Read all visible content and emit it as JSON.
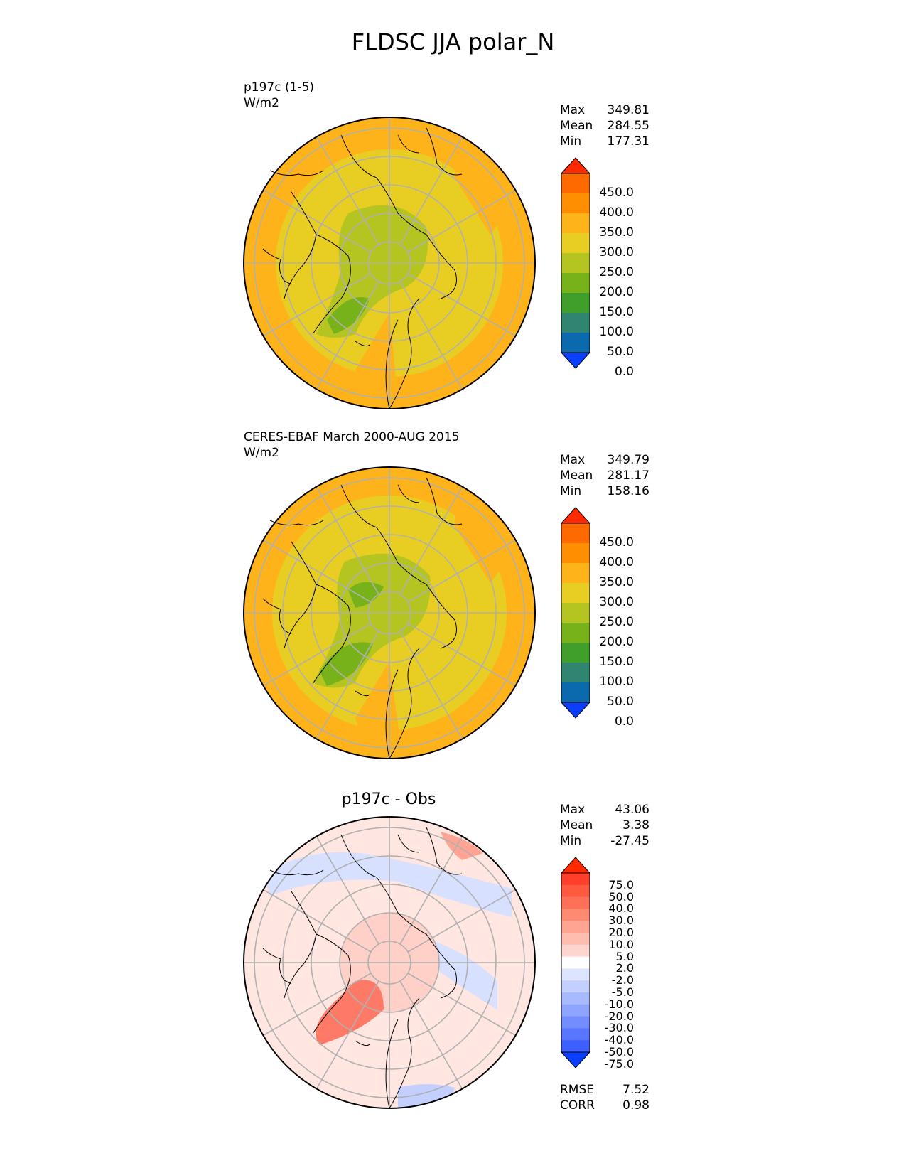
{
  "title": "FLDSC JJA polar_N",
  "panels": [
    {
      "label_line1": "p197c (1-5)",
      "label_line2": "W/m2",
      "stats": {
        "max_label": "Max",
        "max": "349.81",
        "mean_label": "Mean",
        "mean": "284.55",
        "min_label": "Min",
        "min": "177.31"
      }
    },
    {
      "label_line1": "CERES-EBAF March 2000-AUG 2015",
      "label_line2": "W/m2",
      "stats": {
        "max_label": "Max",
        "max": "349.79",
        "mean_label": "Mean",
        "mean": "281.17",
        "min_label": "Min",
        "min": "158.16"
      }
    },
    {
      "title": "p197c - Obs",
      "stats": {
        "max_label": "Max",
        "max": "43.06",
        "mean_label": "Mean",
        "mean": "3.38",
        "min_label": "Min",
        "min": "-27.45"
      },
      "metrics": {
        "rmse_label": "RMSE",
        "rmse": "7.52",
        "corr_label": "CORR",
        "corr": "0.98"
      }
    }
  ],
  "colorbar_main": {
    "labels": [
      "450.0",
      "400.0",
      "350.0",
      "300.0",
      "250.0",
      "200.0",
      "150.0",
      "100.0",
      "50.0",
      "0.0"
    ],
    "colors": [
      "#ff2a00",
      "#ff6a00",
      "#ff8f00",
      "#ffb31a",
      "#e8cd22",
      "#b4c420",
      "#78b21a",
      "#3f9f2a",
      "#2f8570",
      "#0a6aad",
      "#0a3fff"
    ]
  },
  "colorbar_diff": {
    "labels": [
      "75.0",
      "50.0",
      "40.0",
      "30.0",
      "20.0",
      "10.0",
      "5.0",
      "2.0",
      "-2.0",
      "-5.0",
      "-10.0",
      "-20.0",
      "-30.0",
      "-40.0",
      "-50.0",
      "-75.0"
    ],
    "colors": [
      "#ff2a00",
      "#ff3f2a",
      "#ff5a40",
      "#ff7058",
      "#ff8a72",
      "#ffa392",
      "#ffbdb0",
      "#ffd6cf",
      "#ffffff",
      "#dde4ff",
      "#c3cfff",
      "#a8b9ff",
      "#8ea4ff",
      "#738dff",
      "#5876ff",
      "#3d5fff",
      "#0a3fff"
    ]
  },
  "chart_data": [
    {
      "type": "heatmap",
      "title": "p197c (1-5)",
      "units": "W/m2",
      "max": 349.81,
      "mean": 284.55,
      "min": 177.31,
      "levels": [
        0,
        50,
        100,
        150,
        200,
        250,
        300,
        350,
        400,
        450
      ]
    },
    {
      "type": "heatmap",
      "title": "CERES-EBAF March 2000-AUG 2015",
      "units": "W/m2",
      "max": 349.79,
      "mean": 281.17,
      "min": 158.16,
      "levels": [
        0,
        50,
        100,
        150,
        200,
        250,
        300,
        350,
        400,
        450
      ]
    },
    {
      "type": "heatmap",
      "title": "p197c - Obs",
      "max": 43.06,
      "mean": 3.38,
      "min": -27.45,
      "rmse": 7.52,
      "corr": 0.98,
      "levels": [
        -75,
        -50,
        -40,
        -30,
        -20,
        -10,
        -5,
        -2,
        2,
        5,
        10,
        20,
        30,
        40,
        50,
        75
      ]
    }
  ]
}
